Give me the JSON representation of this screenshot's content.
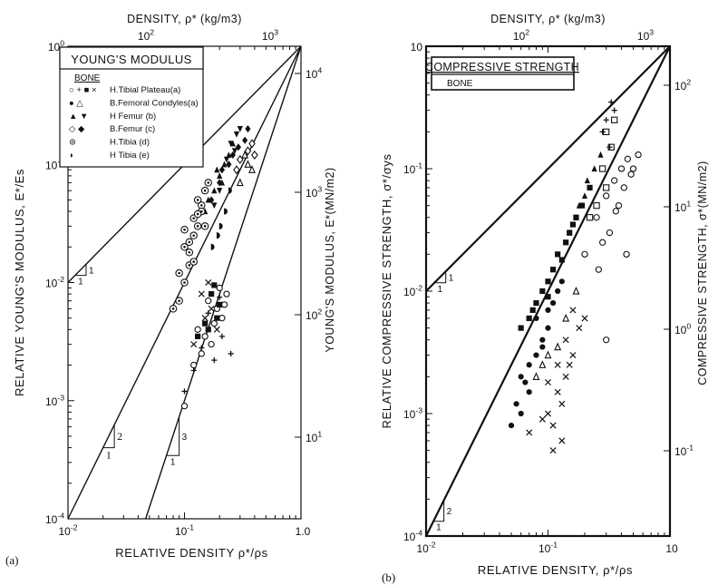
{
  "chart_data": [
    {
      "panel_label": "(a)",
      "type": "scatter",
      "title": "YOUNG'S MODULUS",
      "subtitle": "BONE",
      "xlabel": "RELATIVE DENSITY ρ*/ρs",
      "ylabel": "RELATIVE YOUNG'S MODULUS, E*/Es",
      "top_axis_label": "DENSITY, ρ* (kg/m3)",
      "right_axis_label": "YOUNG'S MODULUS, E*(MN/m2)",
      "x_scale": "log",
      "y_scale": "log",
      "xlim": [
        0.01,
        1
      ],
      "ylim": [
        0.0001,
        1
      ],
      "x_ticks": [
        "10-2",
        "10-1",
        "1.0"
      ],
      "y_ticks": [
        "10-4",
        "10-3",
        "10-2",
        "10-1",
        "100"
      ],
      "top_ticks": [
        "102",
        "103"
      ],
      "right_ticks": [
        "101",
        "102",
        "103",
        "104"
      ],
      "legend_placement": "top-left",
      "legend": [
        {
          "markers": "○ + ■ ×",
          "label": "H.Tibial Plateau(a)"
        },
        {
          "markers": "● △",
          "label": "B.Femoral Condyles(a)"
        },
        {
          "markers": "▲ ▼",
          "label": "H Femur (b)"
        },
        {
          "markers": "◇ ◆",
          "label": "B.Femur (c)"
        },
        {
          "markers": "⊚",
          "label": "H.Tibia (d)"
        },
        {
          "markers": "◗",
          "label": "H Tibia (e)"
        }
      ],
      "lines": [
        {
          "slope": 1,
          "label_rise": "1",
          "label_run": "1",
          "x": [
            0.01,
            1
          ],
          "y": [
            0.01,
            1
          ]
        },
        {
          "slope": 2,
          "label_rise": "2",
          "label_run": "1",
          "x": [
            0.01,
            1
          ],
          "y": [
            0.0001,
            1
          ]
        },
        {
          "slope": 3,
          "label_rise": "3",
          "label_run": "1",
          "x": [
            0.0464,
            1
          ],
          "y": [
            0.0001,
            1
          ]
        }
      ],
      "series": [
        {
          "marker": "circle-open",
          "points": [
            [
              0.1,
              0.0009
            ],
            [
              0.12,
              0.002
            ],
            [
              0.13,
              0.004
            ],
            [
              0.15,
              0.0035
            ],
            [
              0.17,
              0.003
            ],
            [
              0.19,
              0.006
            ],
            [
              0.21,
              0.005
            ],
            [
              0.16,
              0.007
            ],
            [
              0.2,
              0.009
            ],
            [
              0.23,
              0.008
            ],
            [
              0.18,
              0.0045
            ],
            [
              0.22,
              0.0065
            ],
            [
              0.14,
              0.0025
            ]
          ]
        },
        {
          "marker": "plus",
          "points": [
            [
              0.1,
              0.0012
            ],
            [
              0.14,
              0.0028
            ],
            [
              0.18,
              0.0022
            ],
            [
              0.16,
              0.0055
            ],
            [
              0.21,
              0.0035
            ],
            [
              0.25,
              0.0025
            ],
            [
              0.12,
              0.0018
            ],
            [
              0.2,
              0.0075
            ]
          ]
        },
        {
          "marker": "square-filled",
          "points": [
            [
              0.13,
              0.0035
            ],
            [
              0.16,
              0.004
            ],
            [
              0.19,
              0.005
            ],
            [
              0.17,
              0.008
            ],
            [
              0.15,
              0.0045
            ],
            [
              0.2,
              0.0065
            ],
            [
              0.18,
              0.0095
            ]
          ]
        },
        {
          "marker": "cross",
          "points": [
            [
              0.12,
              0.003
            ],
            [
              0.15,
              0.005
            ],
            [
              0.17,
              0.006
            ],
            [
              0.14,
              0.008
            ],
            [
              0.19,
              0.004
            ],
            [
              0.16,
              0.01
            ]
          ]
        },
        {
          "marker": "triangle-up-filled",
          "points": [
            [
              0.15,
              0.04
            ],
            [
              0.18,
              0.06
            ],
            [
              0.2,
              0.08
            ],
            [
              0.22,
              0.1
            ],
            [
              0.16,
              0.05
            ],
            [
              0.24,
              0.12
            ],
            [
              0.19,
              0.09
            ],
            [
              0.26,
              0.15
            ],
            [
              0.13,
              0.03
            ],
            [
              0.21,
              0.07
            ]
          ]
        },
        {
          "marker": "triangle-down-filled",
          "points": [
            [
              0.2,
              0.06
            ],
            [
              0.25,
              0.15
            ],
            [
              0.3,
              0.2
            ],
            [
              0.23,
              0.11
            ],
            [
              0.28,
              0.18
            ],
            [
              0.18,
              0.045
            ],
            [
              0.27,
              0.13
            ]
          ]
        },
        {
          "marker": "diamond-filled",
          "points": [
            [
              0.17,
              0.05
            ],
            [
              0.21,
              0.09
            ],
            [
              0.24,
              0.1
            ],
            [
              0.29,
              0.14
            ],
            [
              0.33,
              0.16
            ],
            [
              0.2,
              0.07
            ],
            [
              0.26,
              0.12
            ],
            [
              0.35,
              0.2
            ]
          ]
        },
        {
          "marker": "diamond-open",
          "points": [
            [
              0.3,
              0.11
            ],
            [
              0.35,
              0.13
            ],
            [
              0.38,
              0.15
            ],
            [
              0.28,
              0.09
            ],
            [
              0.4,
              0.12
            ]
          ]
        },
        {
          "marker": "circle-dot",
          "points": [
            [
              0.09,
              0.007
            ],
            [
              0.1,
              0.01
            ],
            [
              0.11,
              0.014
            ],
            [
              0.1,
              0.02
            ],
            [
              0.12,
              0.025
            ],
            [
              0.11,
              0.018
            ],
            [
              0.13,
              0.03
            ],
            [
              0.12,
              0.035
            ],
            [
              0.14,
              0.045
            ],
            [
              0.13,
              0.05
            ],
            [
              0.15,
              0.06
            ],
            [
              0.14,
              0.04
            ],
            [
              0.09,
              0.012
            ],
            [
              0.1,
              0.028
            ],
            [
              0.16,
              0.07
            ],
            [
              0.08,
              0.006
            ],
            [
              0.15,
              0.03
            ],
            [
              0.12,
              0.015
            ],
            [
              0.11,
              0.022
            ],
            [
              0.13,
              0.038
            ]
          ]
        },
        {
          "marker": "half-circle",
          "points": [
            [
              0.17,
              0.02
            ],
            [
              0.2,
              0.03
            ],
            [
              0.22,
              0.04
            ],
            [
              0.19,
              0.025
            ],
            [
              0.24,
              0.06
            ]
          ]
        },
        {
          "marker": "triangle-open",
          "points": [
            [
              0.3,
              0.07
            ],
            [
              0.35,
              0.1
            ],
            [
              0.38,
              0.09
            ],
            [
              0.33,
              0.12
            ]
          ]
        }
      ]
    },
    {
      "panel_label": "(b)",
      "type": "scatter",
      "title": "COMPRESSIVE STRENGTH",
      "subtitle": "BONE",
      "xlabel": "RELATIVE DENSITY, ρ*/ρs",
      "ylabel": "RELATIVE COMPRESSIVE STRENGTH, σ*/σys",
      "top_axis_label": "DENSITY, ρ* (kg/m3)",
      "right_axis_label": "COMPRESSIVE STRENGTH, σ*(MN/m2)",
      "x_scale": "log",
      "y_scale": "log",
      "xlim": [
        0.01,
        1
      ],
      "ylim": [
        0.0001,
        1
      ],
      "x_ticks": [
        "10-2",
        "10-1",
        "10"
      ],
      "y_ticks": [
        "10-4",
        "10-3",
        "10-2",
        "10-1",
        "10"
      ],
      "top_ticks": [
        "102",
        "103"
      ],
      "right_ticks": [
        "10-1",
        "100",
        "101",
        "102"
      ],
      "lines": [
        {
          "slope": 1,
          "label_rise": "1",
          "label_run": "1",
          "x": [
            0.01,
            1
          ],
          "y": [
            0.01,
            1
          ]
        },
        {
          "slope": 2,
          "label_rise": "2",
          "label_run": "1",
          "x": [
            0.01,
            1
          ],
          "y": [
            0.0001,
            1
          ]
        }
      ],
      "series": [
        {
          "marker": "circle-filled",
          "points": [
            [
              0.05,
              0.0008
            ],
            [
              0.06,
              0.001
            ],
            [
              0.07,
              0.0015
            ],
            [
              0.06,
              0.002
            ],
            [
              0.08,
              0.003
            ],
            [
              0.09,
              0.004
            ],
            [
              0.07,
              0.0025
            ],
            [
              0.1,
              0.005
            ],
            [
              0.08,
              0.006
            ],
            [
              0.11,
              0.008
            ],
            [
              0.09,
              0.0035
            ],
            [
              0.12,
              0.01
            ],
            [
              0.055,
              0.0012
            ],
            [
              0.065,
              0.0018
            ],
            [
              0.1,
              0.007
            ],
            [
              0.13,
              0.012
            ]
          ]
        },
        {
          "marker": "square-filled",
          "points": [
            [
              0.06,
              0.005
            ],
            [
              0.07,
              0.006
            ],
            [
              0.08,
              0.008
            ],
            [
              0.09,
              0.01
            ],
            [
              0.1,
              0.012
            ],
            [
              0.11,
              0.015
            ],
            [
              0.12,
              0.02
            ],
            [
              0.14,
              0.025
            ],
            [
              0.15,
              0.03
            ],
            [
              0.17,
              0.04
            ],
            [
              0.19,
              0.05
            ],
            [
              0.22,
              0.07
            ],
            [
              0.13,
              0.018
            ],
            [
              0.16,
              0.035
            ],
            [
              0.1,
              0.009
            ],
            [
              0.075,
              0.007
            ]
          ]
        },
        {
          "marker": "triangle-up-filled",
          "points": [
            [
              0.15,
              0.03
            ],
            [
              0.18,
              0.05
            ],
            [
              0.21,
              0.08
            ],
            [
              0.24,
              0.1
            ],
            [
              0.2,
              0.06
            ],
            [
              0.27,
              0.13
            ],
            [
              0.17,
              0.04
            ]
          ]
        },
        {
          "marker": "circle-open",
          "points": [
            [
              0.2,
              0.02
            ],
            [
              0.25,
              0.04
            ],
            [
              0.3,
              0.06
            ],
            [
              0.35,
              0.08
            ],
            [
              0.4,
              0.1
            ],
            [
              0.45,
              0.12
            ],
            [
              0.5,
              0.1
            ],
            [
              0.38,
              0.05
            ],
            [
              0.32,
              0.03
            ],
            [
              0.42,
              0.07
            ],
            [
              0.48,
              0.09
            ],
            [
              0.28,
              0.025
            ],
            [
              0.36,
              0.045
            ],
            [
              0.55,
              0.13
            ],
            [
              0.3,
              0.004
            ],
            [
              0.44,
              0.02
            ],
            [
              0.26,
              0.015
            ]
          ]
        },
        {
          "marker": "square-open",
          "points": [
            [
              0.25,
              0.05
            ],
            [
              0.3,
              0.07
            ],
            [
              0.28,
              0.1
            ],
            [
              0.33,
              0.15
            ],
            [
              0.3,
              0.2
            ],
            [
              0.35,
              0.25
            ],
            [
              0.22,
              0.04
            ]
          ]
        },
        {
          "marker": "plus",
          "points": [
            [
              0.3,
              0.25
            ],
            [
              0.33,
              0.35
            ],
            [
              0.35,
              0.3
            ],
            [
              0.28,
              0.2
            ],
            [
              0.32,
              0.15
            ]
          ]
        },
        {
          "marker": "cross",
          "points": [
            [
              0.1,
              0.001
            ],
            [
              0.12,
              0.0015
            ],
            [
              0.14,
              0.002
            ],
            [
              0.11,
              0.0008
            ],
            [
              0.13,
              0.0012
            ],
            [
              0.15,
              0.0025
            ],
            [
              0.09,
              0.0009
            ],
            [
              0.12,
              0.0025
            ],
            [
              0.16,
              0.003
            ],
            [
              0.1,
              0.0018
            ],
            [
              0.14,
              0.004
            ],
            [
              0.18,
              0.005
            ],
            [
              0.2,
              0.006
            ],
            [
              0.16,
              0.007
            ],
            [
              0.07,
              0.0007
            ],
            [
              0.13,
              0.0006
            ],
            [
              0.11,
              0.0005
            ]
          ]
        },
        {
          "marker": "triangle-open",
          "points": [
            [
              0.08,
              0.002
            ],
            [
              0.1,
              0.003
            ],
            [
              0.12,
              0.0035
            ],
            [
              0.09,
              0.0025
            ],
            [
              0.14,
              0.006
            ],
            [
              0.17,
              0.01
            ]
          ]
        }
      ]
    }
  ]
}
